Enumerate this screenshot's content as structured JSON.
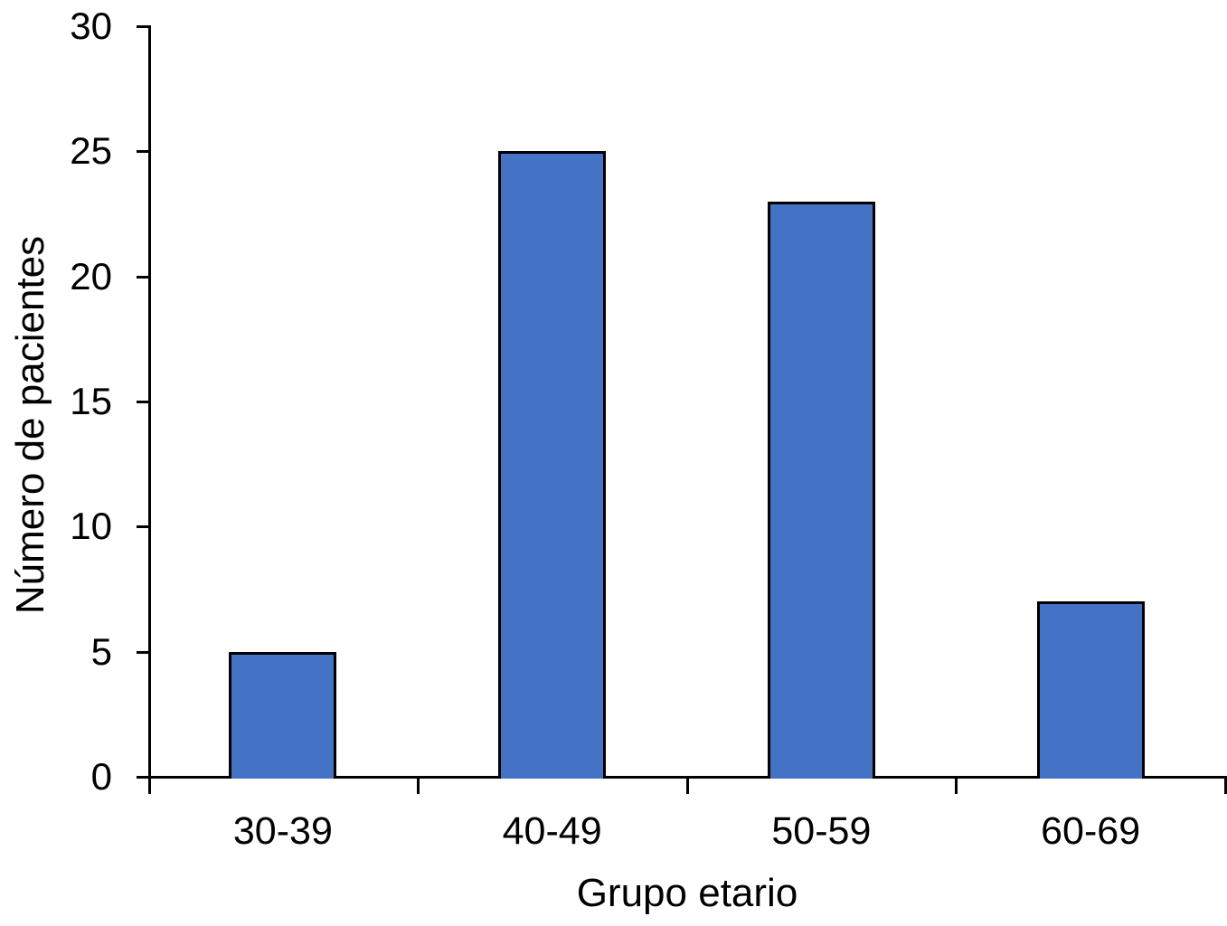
{
  "chart_data": {
    "type": "bar",
    "title": "",
    "categories": [
      "30-39",
      "40-49",
      "50-59",
      "60-69"
    ],
    "values": [
      5,
      25,
      23,
      7
    ],
    "xlabel": "Grupo etario",
    "ylabel": "Número de pacientes",
    "ylim": [
      0,
      30
    ],
    "yticks": [
      0,
      5,
      10,
      15,
      20,
      25,
      30
    ],
    "grid": false,
    "legend": false,
    "bar_fill_color": "#4472C4",
    "bar_border_color": "#000000",
    "axis_color": "#000000",
    "background_color": "#FFFFFF"
  }
}
